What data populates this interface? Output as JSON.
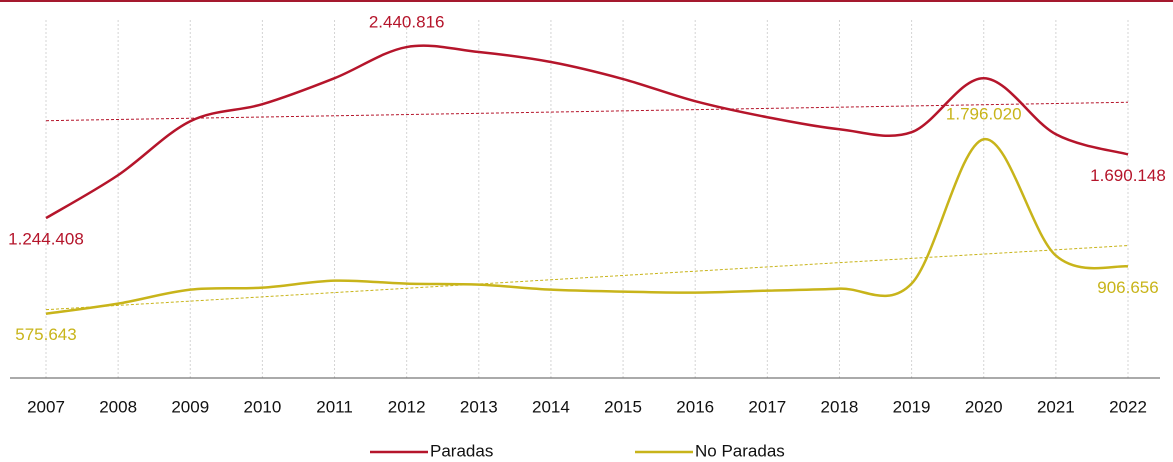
{
  "chart_data": {
    "type": "line",
    "categories": [
      "2007",
      "2008",
      "2009",
      "2010",
      "2011",
      "2012",
      "2013",
      "2014",
      "2015",
      "2016",
      "2017",
      "2018",
      "2019",
      "2020",
      "2021",
      "2022"
    ],
    "series": [
      {
        "name": "Paradas",
        "color": "#b5152b",
        "values": [
          1244408,
          1545000,
          1922000,
          2041000,
          2223000,
          2440816,
          2406000,
          2336000,
          2217000,
          2062000,
          1950000,
          1866000,
          1845000,
          2223000,
          1831000,
          1690148
        ],
        "value_labels": [
          "1.244.408",
          null,
          null,
          null,
          null,
          "2.440.816",
          null,
          null,
          null,
          null,
          null,
          null,
          null,
          null,
          null,
          "1.690.148"
        ]
      },
      {
        "name": "No Paradas",
        "color": "#c8b41a",
        "values": [
          575643,
          646000,
          744000,
          758000,
          807000,
          786000,
          779000,
          744000,
          730000,
          723000,
          737000,
          751000,
          786000,
          1796020,
          982000,
          906656
        ],
        "value_labels": [
          "575.643",
          null,
          null,
          null,
          null,
          null,
          null,
          null,
          null,
          null,
          null,
          null,
          null,
          "1.796.020",
          null,
          "906.656"
        ]
      }
    ],
    "ylim": [
      126000,
      2630000
    ],
    "trendline": true,
    "grid": true,
    "legend": "bottom"
  }
}
